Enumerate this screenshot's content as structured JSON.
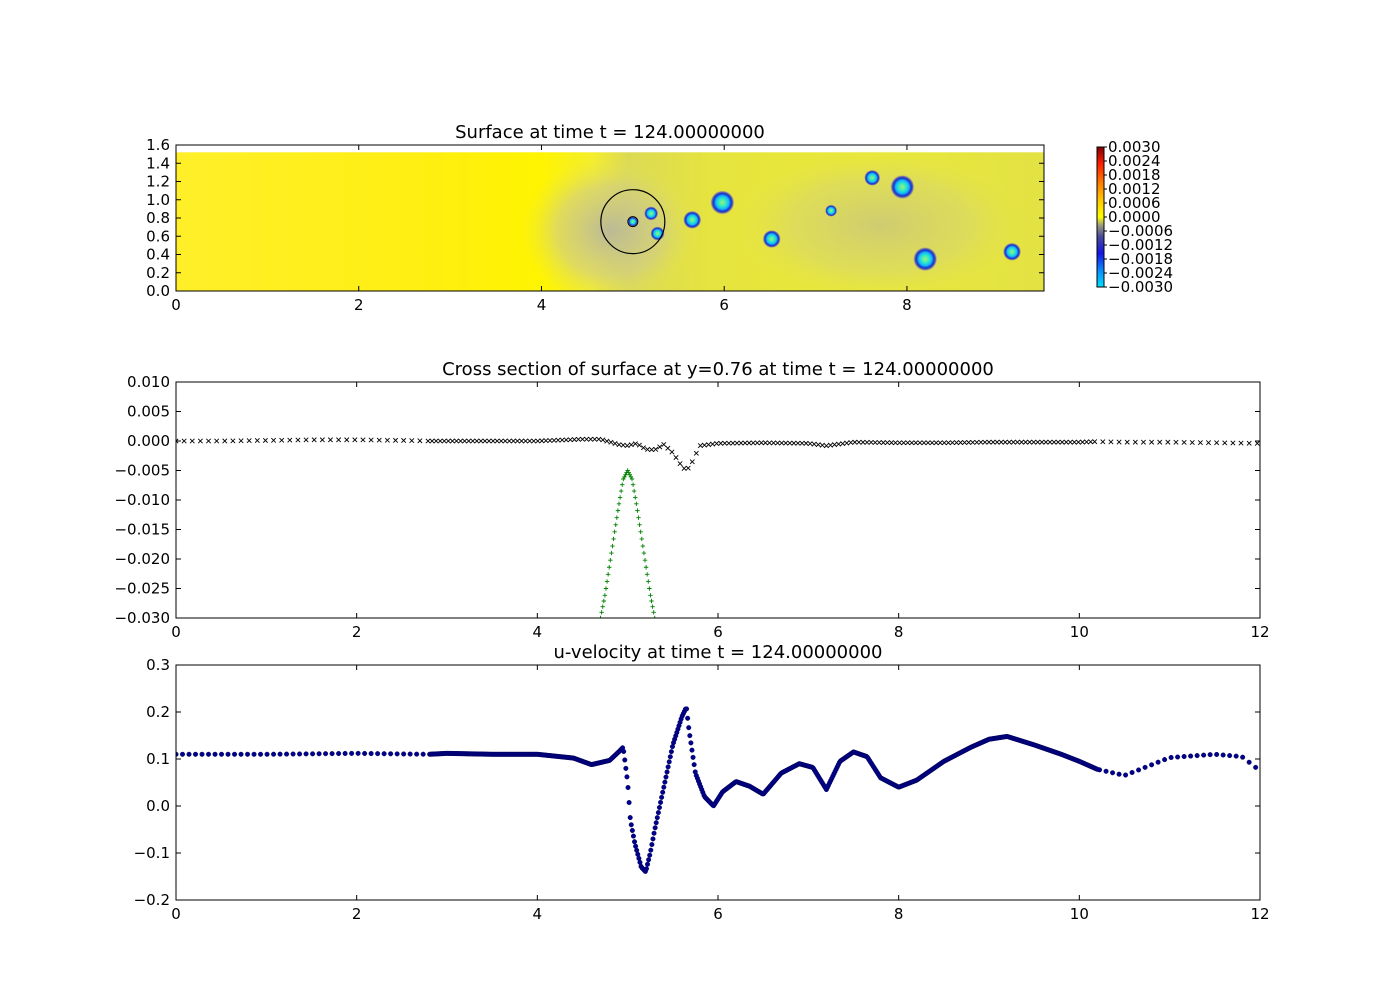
{
  "figure": {
    "panels": 3
  },
  "chart_data": [
    {
      "type": "heatmap",
      "title": "Surface at time t =   124.00000000",
      "xlim": [
        0,
        9.5
      ],
      "ylim": [
        0,
        1.6
      ],
      "xticks": [
        "0",
        "2",
        "4",
        "6",
        "8"
      ],
      "yticks": [
        "0.0",
        "0.2",
        "0.4",
        "0.6",
        "0.8",
        "1.0",
        "1.2",
        "1.4",
        "1.6"
      ],
      "domain_ymax": 1.52,
      "colormap": "jet-centered",
      "colorbar": {
        "min": -0.003,
        "max": 0.003,
        "ticks": [
          "0.0030",
          "0.0024",
          "0.0018",
          "0.0012",
          "0.0006",
          "0.0000",
          "−0.0006",
          "−0.0012",
          "−0.0018",
          "−0.0024",
          "−0.0030"
        ]
      },
      "body": {
        "x": 5.0,
        "y": 0.76,
        "radius": 0.35
      },
      "depressions": [
        {
          "x": 5.2,
          "y": 0.85,
          "r": 0.07
        },
        {
          "x": 5.27,
          "y": 0.63,
          "r": 0.07
        },
        {
          "x": 5.65,
          "y": 0.78,
          "r": 0.09
        },
        {
          "x": 5.98,
          "y": 0.97,
          "r": 0.12
        },
        {
          "x": 6.52,
          "y": 0.57,
          "r": 0.09
        },
        {
          "x": 7.17,
          "y": 0.88,
          "r": 0.06
        },
        {
          "x": 7.62,
          "y": 1.24,
          "r": 0.08
        },
        {
          "x": 7.95,
          "y": 1.14,
          "r": 0.12
        },
        {
          "x": 8.2,
          "y": 0.35,
          "r": 0.12
        },
        {
          "x": 9.15,
          "y": 0.43,
          "r": 0.09
        }
      ],
      "grid": false,
      "legend": "none"
    },
    {
      "type": "scatter",
      "title": "Cross section of surface at y=0.76 at time t =   124.00000000",
      "xlim": [
        0,
        12
      ],
      "ylim": [
        -0.03,
        0.01
      ],
      "xticks": [
        "0",
        "2",
        "4",
        "6",
        "8",
        "10",
        "12"
      ],
      "yticks": [
        "0.010",
        "0.005",
        "0.000",
        "−0.005",
        "−0.010",
        "−0.015",
        "−0.020",
        "−0.025",
        "−0.030"
      ],
      "series": [
        {
          "marker": "x",
          "color": "#000000",
          "x": [
            0.0,
            0.5,
            1.0,
            1.5,
            2.0,
            2.5,
            2.8,
            3.5,
            4.0,
            4.5,
            4.7,
            4.9,
            5.0,
            5.1,
            5.2,
            5.3,
            5.4,
            5.5,
            5.6,
            5.65,
            5.7,
            5.8,
            6.0,
            6.5,
            7.0,
            7.2,
            7.5,
            8.0,
            8.5,
            9.0,
            9.5,
            10.0,
            10.2,
            10.5,
            11.0,
            11.5,
            12.0
          ],
          "y": [
            0.0,
            0.0,
            0.0001,
            0.0002,
            0.0002,
            0.0001,
            0.0,
            0.0,
            0.0,
            0.0003,
            0.0003,
            -0.0006,
            -0.0008,
            -0.0004,
            -0.0014,
            -0.0015,
            -0.0006,
            -0.002,
            -0.0043,
            -0.005,
            -0.004,
            -0.0008,
            -0.0004,
            -0.0003,
            -0.0004,
            -0.0008,
            -0.0002,
            -0.0003,
            -0.0003,
            -0.0002,
            -0.0002,
            -0.0002,
            -0.0001,
            -0.0002,
            -0.0002,
            -0.0003,
            -0.0004
          ]
        },
        {
          "marker": "+",
          "color": "#008000",
          "x": [
            4.7,
            4.75,
            4.8,
            4.85,
            4.9,
            4.95,
            5.0,
            5.05,
            5.1,
            5.15,
            5.2,
            5.25,
            5.3
          ],
          "y": [
            -0.03,
            -0.026,
            -0.021,
            -0.016,
            -0.011,
            -0.0065,
            -0.005,
            -0.0065,
            -0.011,
            -0.016,
            -0.021,
            -0.026,
            -0.03
          ]
        }
      ],
      "grid": false,
      "legend": "none"
    },
    {
      "type": "scatter",
      "title": "u-velocity at time t =   124.00000000",
      "xlim": [
        0,
        12
      ],
      "ylim": [
        -0.2,
        0.3
      ],
      "xticks": [
        "0",
        "2",
        "4",
        "6",
        "8",
        "10",
        "12"
      ],
      "yticks": [
        "0.3",
        "0.2",
        "0.1",
        "0.0",
        "−0.1",
        "−0.2"
      ],
      "series": [
        {
          "marker": "o",
          "color": "#00008b",
          "x": [
            0.0,
            1.0,
            2.0,
            2.8,
            3.0,
            3.5,
            4.0,
            4.4,
            4.6,
            4.8,
            4.9,
            4.95,
            5.0,
            5.03,
            5.08,
            5.15,
            5.2,
            5.25,
            5.3,
            5.4,
            5.5,
            5.6,
            5.65,
            5.68,
            5.75,
            5.85,
            5.95,
            6.05,
            6.2,
            6.35,
            6.5,
            6.7,
            6.9,
            7.05,
            7.2,
            7.35,
            7.5,
            7.65,
            7.8,
            8.0,
            8.2,
            8.5,
            8.8,
            9.0,
            9.2,
            9.5,
            9.8,
            10.0,
            10.2,
            10.5,
            10.7,
            11.0,
            11.5,
            11.8,
            12.0
          ],
          "y": [
            0.11,
            0.11,
            0.112,
            0.11,
            0.112,
            0.11,
            0.11,
            0.102,
            0.088,
            0.097,
            0.115,
            0.125,
            0.05,
            -0.03,
            -0.08,
            -0.13,
            -0.14,
            -0.1,
            -0.05,
            0.04,
            0.13,
            0.19,
            0.21,
            0.16,
            0.07,
            0.02,
            0.0,
            0.03,
            0.052,
            0.042,
            0.025,
            0.07,
            0.09,
            0.082,
            0.035,
            0.095,
            0.115,
            0.105,
            0.06,
            0.04,
            0.055,
            0.095,
            0.125,
            0.142,
            0.148,
            0.13,
            0.11,
            0.095,
            0.078,
            0.065,
            0.08,
            0.103,
            0.11,
            0.105,
            0.075
          ]
        }
      ],
      "grid": false,
      "legend": "none"
    }
  ]
}
